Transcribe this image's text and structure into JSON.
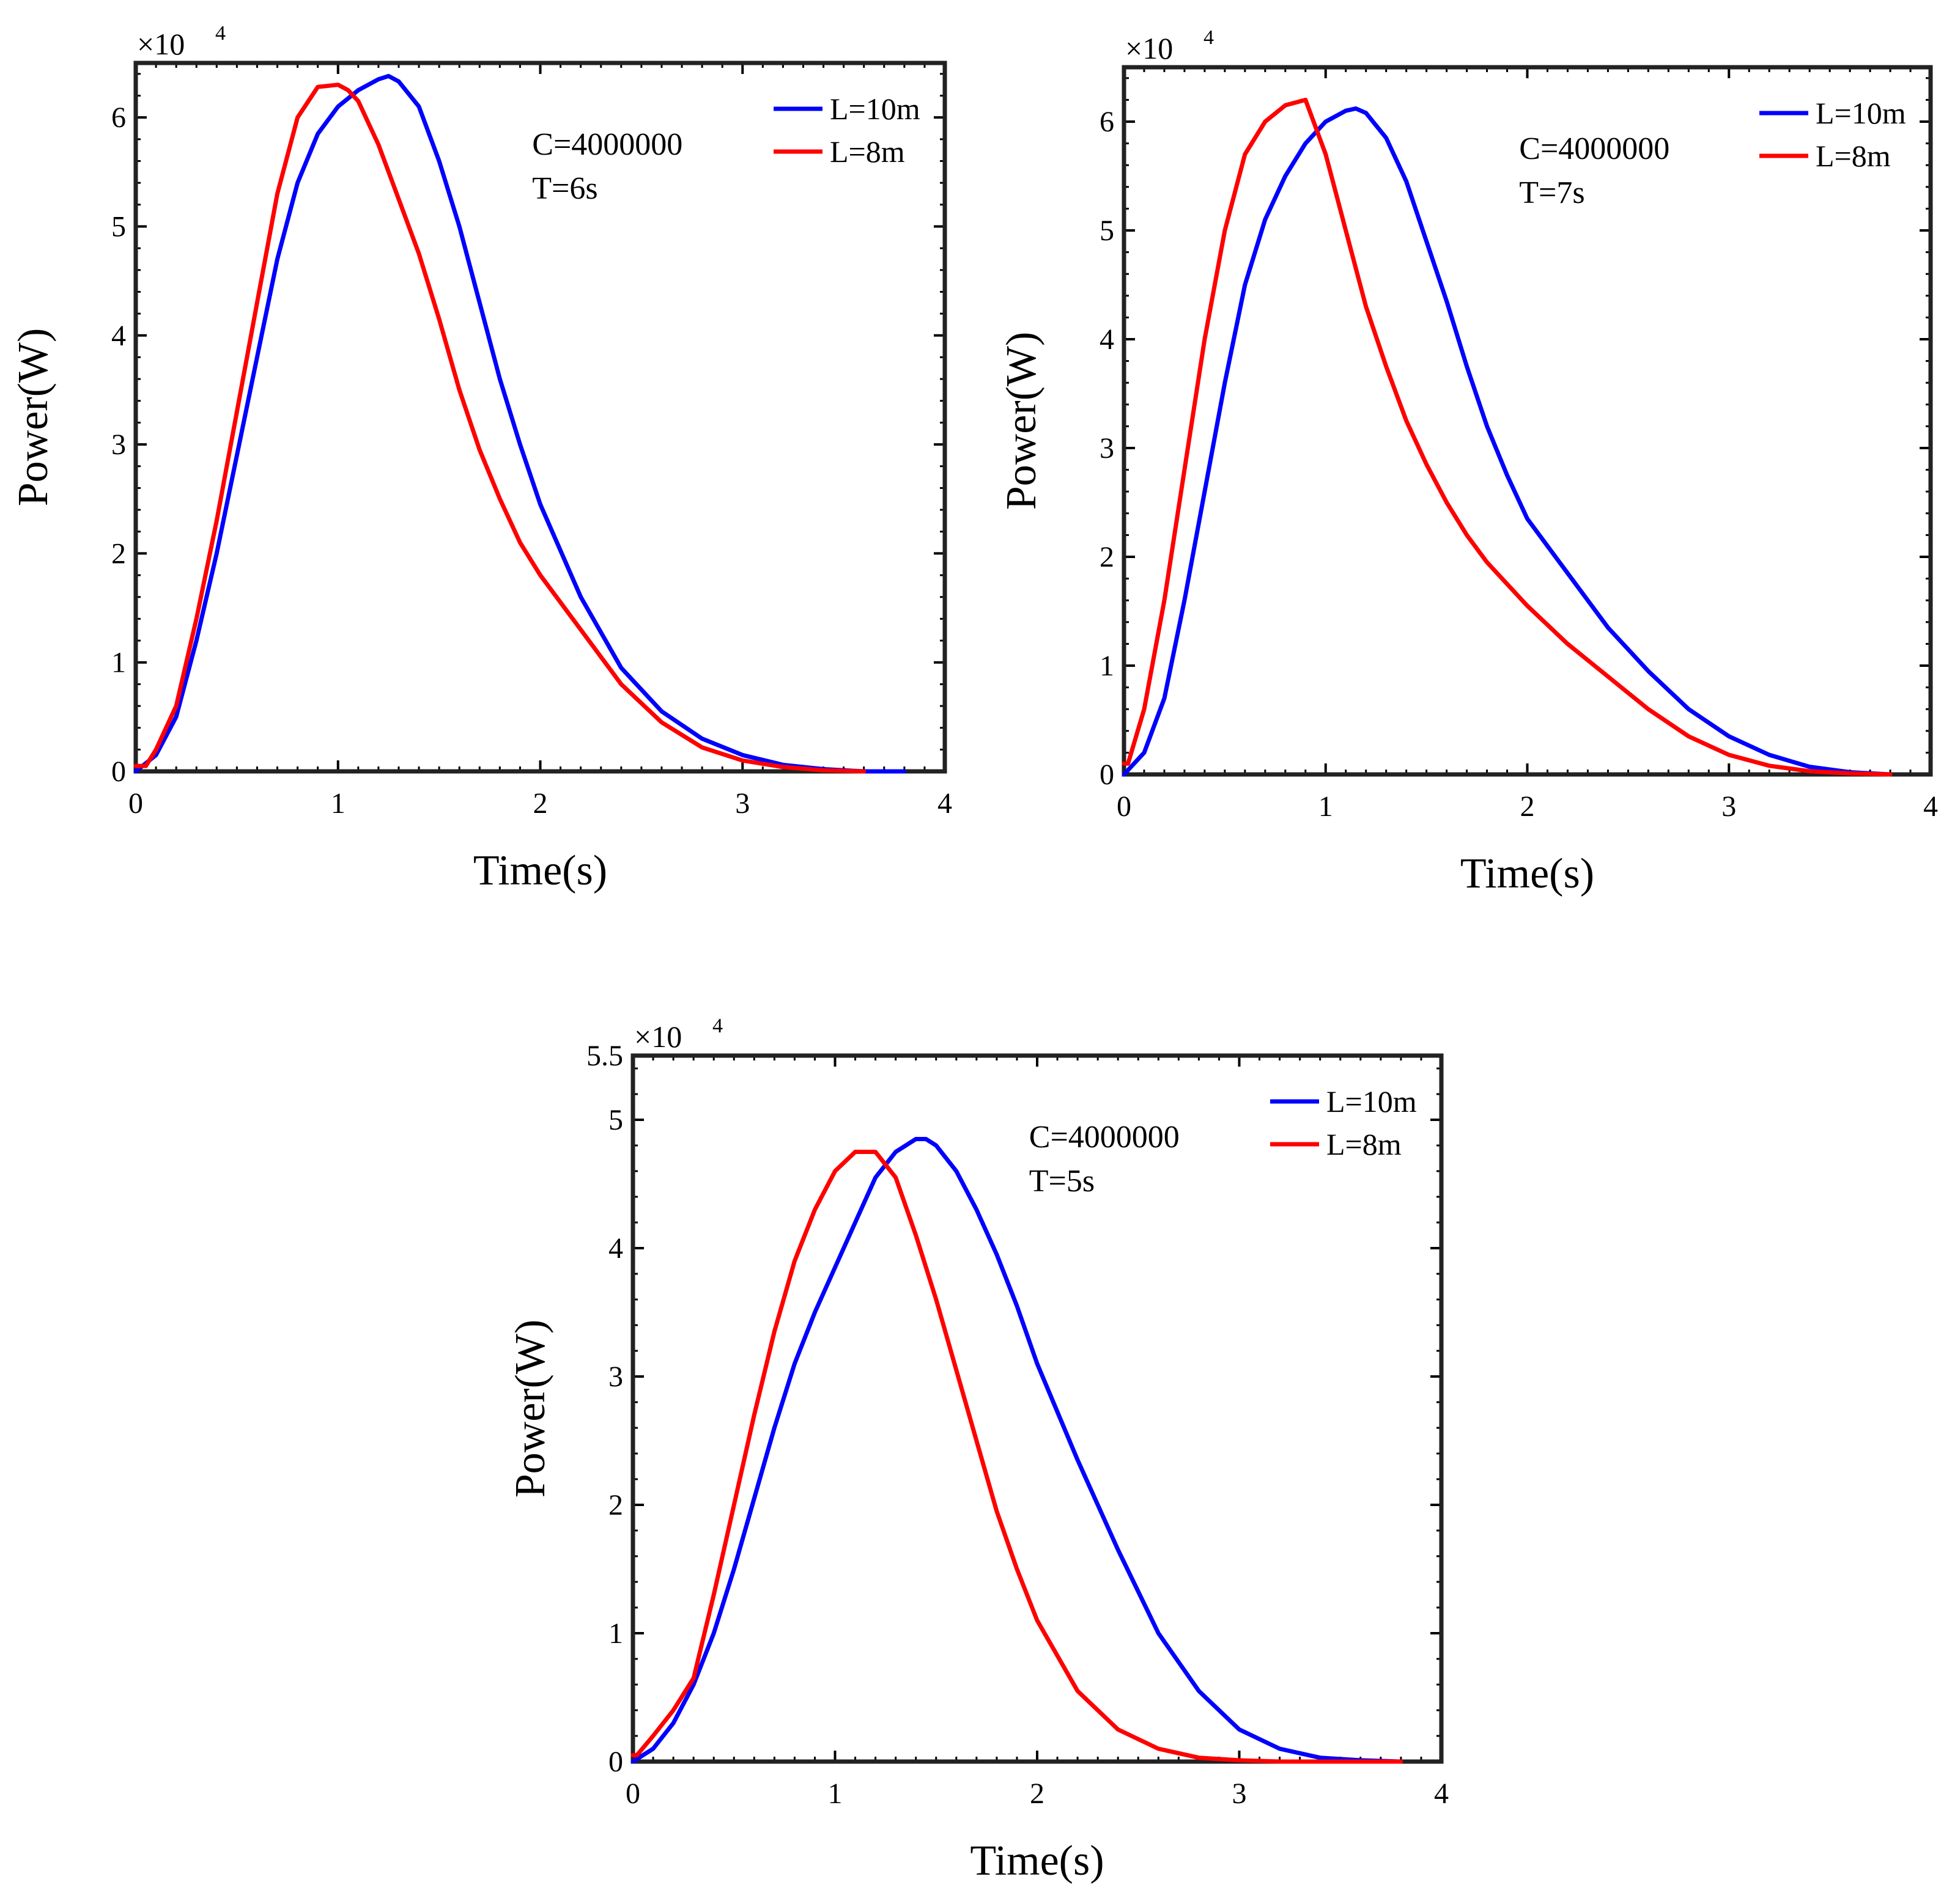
{
  "chart_data": [
    {
      "type": "line",
      "xlabel": "Time(s)",
      "ylabel": "Power(W)",
      "y_multiplier_label": "×10",
      "y_multiplier_exp": "4",
      "xlim": [
        0,
        4
      ],
      "ylim": [
        0,
        6.5
      ],
      "xticks": [
        "0",
        "1",
        "2",
        "3",
        "4"
      ],
      "yticks": [
        "0",
        "1",
        "2",
        "3",
        "4",
        "5",
        "6"
      ],
      "annotations": [
        "C=4000000",
        "T=6s"
      ],
      "legend_placement": "top-right",
      "series": [
        {
          "name": "L=10m",
          "color": "#0000ff",
          "x": [
            0,
            0.1,
            0.2,
            0.3,
            0.4,
            0.5,
            0.6,
            0.7,
            0.8,
            0.9,
            1.0,
            1.1,
            1.2,
            1.25,
            1.3,
            1.4,
            1.5,
            1.6,
            1.7,
            1.8,
            1.9,
            2.0,
            2.2,
            2.4,
            2.6,
            2.8,
            3.0,
            3.2,
            3.4,
            3.6,
            3.8
          ],
          "y": [
            0,
            0.15,
            0.5,
            1.2,
            2.0,
            2.9,
            3.8,
            4.7,
            5.4,
            5.85,
            6.1,
            6.25,
            6.35,
            6.38,
            6.33,
            6.1,
            5.6,
            5.0,
            4.3,
            3.6,
            3.0,
            2.45,
            1.6,
            0.95,
            0.55,
            0.3,
            0.15,
            0.06,
            0.02,
            0.0,
            0.0
          ]
        },
        {
          "name": "L=8m",
          "color": "#ff0000",
          "x": [
            0,
            0.05,
            0.1,
            0.2,
            0.3,
            0.4,
            0.5,
            0.6,
            0.7,
            0.8,
            0.9,
            1.0,
            1.05,
            1.1,
            1.2,
            1.3,
            1.4,
            1.5,
            1.6,
            1.7,
            1.8,
            1.9,
            2.0,
            2.2,
            2.4,
            2.6,
            2.8,
            3.0,
            3.2,
            3.4,
            3.6
          ],
          "y": [
            0.05,
            0.05,
            0.2,
            0.6,
            1.4,
            2.3,
            3.3,
            4.3,
            5.3,
            6.0,
            6.28,
            6.3,
            6.25,
            6.15,
            5.75,
            5.25,
            4.75,
            4.15,
            3.5,
            2.95,
            2.5,
            2.1,
            1.8,
            1.3,
            0.8,
            0.45,
            0.22,
            0.1,
            0.04,
            0.01,
            0.0
          ]
        }
      ]
    },
    {
      "type": "line",
      "xlabel": "Time(s)",
      "ylabel": "Power(W)",
      "y_multiplier_label": "×10",
      "y_multiplier_exp": "4",
      "xlim": [
        0,
        4
      ],
      "ylim": [
        0,
        6.5
      ],
      "xticks": [
        "0",
        "1",
        "2",
        "3",
        "4"
      ],
      "yticks": [
        "0",
        "1",
        "2",
        "3",
        "4",
        "5",
        "6"
      ],
      "annotations": [
        "C=4000000",
        "T=7s"
      ],
      "legend_placement": "top-right",
      "series": [
        {
          "name": "L=10m",
          "color": "#0000ff",
          "x": [
            0,
            0.1,
            0.2,
            0.3,
            0.4,
            0.5,
            0.6,
            0.7,
            0.8,
            0.9,
            1.0,
            1.1,
            1.15,
            1.2,
            1.3,
            1.4,
            1.5,
            1.6,
            1.7,
            1.8,
            1.9,
            2.0,
            2.2,
            2.4,
            2.6,
            2.8,
            3.0,
            3.2,
            3.4,
            3.6,
            3.8
          ],
          "y": [
            0,
            0.2,
            0.7,
            1.6,
            2.6,
            3.6,
            4.5,
            5.1,
            5.5,
            5.8,
            6.0,
            6.1,
            6.12,
            6.08,
            5.85,
            5.45,
            4.9,
            4.35,
            3.75,
            3.2,
            2.75,
            2.35,
            1.85,
            1.35,
            0.95,
            0.6,
            0.35,
            0.18,
            0.07,
            0.02,
            0.0
          ]
        },
        {
          "name": "L=8m",
          "color": "#ff0000",
          "x": [
            0,
            0.02,
            0.1,
            0.2,
            0.3,
            0.4,
            0.5,
            0.6,
            0.7,
            0.8,
            0.9,
            1.0,
            1.1,
            1.2,
            1.3,
            1.4,
            1.5,
            1.6,
            1.7,
            1.8,
            1.9,
            2.0,
            2.2,
            2.4,
            2.6,
            2.8,
            3.0,
            3.2,
            3.4,
            3.6,
            3.8
          ],
          "y": [
            0.1,
            0.1,
            0.6,
            1.6,
            2.8,
            4.0,
            5.0,
            5.7,
            6.0,
            6.15,
            6.2,
            5.7,
            5.0,
            4.3,
            3.75,
            3.25,
            2.85,
            2.5,
            2.2,
            1.95,
            1.75,
            1.55,
            1.2,
            0.9,
            0.6,
            0.35,
            0.18,
            0.08,
            0.03,
            0.01,
            0.0
          ]
        }
      ]
    },
    {
      "type": "line",
      "xlabel": "Time(s)",
      "ylabel": "Power(W)",
      "y_multiplier_label": "×10",
      "y_multiplier_exp": "4",
      "xlim": [
        0,
        4
      ],
      "ylim": [
        0,
        5.5
      ],
      "xticks": [
        "0",
        "1",
        "2",
        "3",
        "4"
      ],
      "yticks": [
        "0",
        "1",
        "2",
        "3",
        "4",
        "5",
        "5.5"
      ],
      "annotations": [
        "C=4000000",
        "T=5s"
      ],
      "legend_placement": "top-right",
      "series": [
        {
          "name": "L=10m",
          "color": "#0000ff",
          "x": [
            0,
            0.1,
            0.2,
            0.3,
            0.4,
            0.5,
            0.6,
            0.7,
            0.8,
            0.9,
            1.0,
            1.1,
            1.2,
            1.3,
            1.4,
            1.45,
            1.5,
            1.6,
            1.7,
            1.8,
            1.9,
            2.0,
            2.2,
            2.4,
            2.6,
            2.8,
            3.0,
            3.2,
            3.4,
            3.6,
            3.8
          ],
          "y": [
            0,
            0.1,
            0.3,
            0.6,
            1.0,
            1.5,
            2.05,
            2.6,
            3.1,
            3.5,
            3.85,
            4.2,
            4.55,
            4.75,
            4.85,
            4.85,
            4.8,
            4.6,
            4.3,
            3.95,
            3.55,
            3.1,
            2.35,
            1.65,
            1.0,
            0.55,
            0.25,
            0.1,
            0.03,
            0.01,
            0.0
          ]
        },
        {
          "name": "L=8m",
          "color": "#ff0000",
          "x": [
            0,
            0.02,
            0.1,
            0.2,
            0.3,
            0.4,
            0.5,
            0.6,
            0.7,
            0.8,
            0.9,
            1.0,
            1.1,
            1.2,
            1.3,
            1.4,
            1.5,
            1.6,
            1.7,
            1.8,
            1.9,
            2.0,
            2.2,
            2.4,
            2.6,
            2.8,
            3.0,
            3.2,
            3.4,
            3.6,
            3.8
          ],
          "y": [
            0.05,
            0.05,
            0.2,
            0.4,
            0.65,
            1.3,
            2.0,
            2.7,
            3.35,
            3.9,
            4.3,
            4.6,
            4.75,
            4.75,
            4.55,
            4.1,
            3.6,
            3.05,
            2.5,
            1.95,
            1.5,
            1.1,
            0.55,
            0.25,
            0.1,
            0.03,
            0.01,
            0.0,
            0.0,
            0.0,
            0.0
          ]
        }
      ]
    }
  ]
}
